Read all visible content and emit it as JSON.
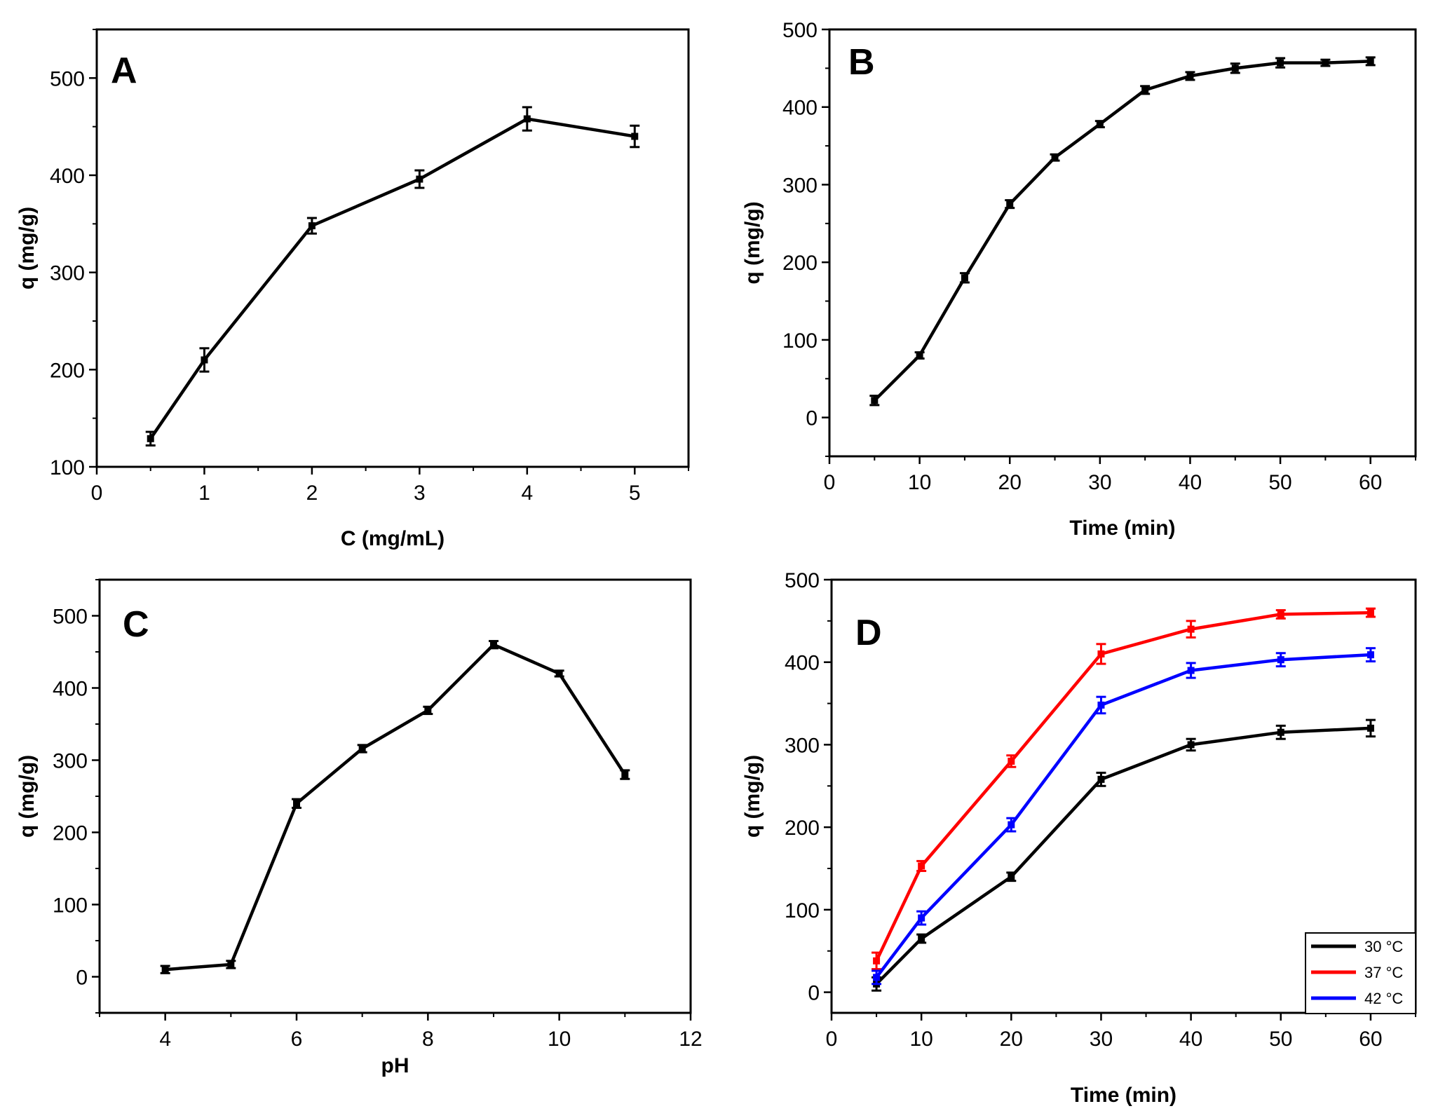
{
  "chart_data": [
    {
      "type": "line",
      "panel": "A",
      "xlabel": "C (mg/mL)",
      "ylabel": "q (mg/g)",
      "xlim": [
        0,
        5.5
      ],
      "ylim": [
        100,
        550
      ],
      "xticks": [
        0,
        1,
        2,
        3,
        4,
        5
      ],
      "yticks": [
        100,
        200,
        300,
        400,
        500
      ],
      "series": [
        {
          "name": "q",
          "color": "#000000",
          "x": [
            0.5,
            1,
            2,
            3,
            4,
            5
          ],
          "y": [
            129,
            210,
            348,
            396,
            458,
            440
          ],
          "err": [
            7,
            12,
            8,
            9,
            12,
            11
          ]
        }
      ]
    },
    {
      "type": "line",
      "panel": "B",
      "xlabel": "Time (min)",
      "ylabel": "q (mg/g)",
      "xlim": [
        0,
        65
      ],
      "ylim": [
        -50,
        500
      ],
      "xticks": [
        0,
        10,
        20,
        30,
        40,
        50,
        60
      ],
      "yticks": [
        0,
        100,
        200,
        300,
        400,
        500
      ],
      "series": [
        {
          "name": "q",
          "color": "#000000",
          "x": [
            5,
            10,
            15,
            20,
            25,
            30,
            35,
            40,
            45,
            50,
            55,
            60
          ],
          "y": [
            22,
            80,
            180,
            275,
            335,
            378,
            422,
            440,
            450,
            457,
            457,
            459
          ],
          "err": [
            6,
            4,
            6,
            5,
            4,
            4,
            5,
            5,
            6,
            6,
            4,
            5
          ]
        }
      ]
    },
    {
      "type": "line",
      "panel": "C",
      "xlabel": "pH",
      "ylabel": "q (mg/g)",
      "xlim": [
        3,
        12
      ],
      "ylim": [
        -50,
        550
      ],
      "xticks": [
        4,
        6,
        8,
        10,
        12
      ],
      "yticks": [
        0,
        100,
        200,
        300,
        400,
        500
      ],
      "series": [
        {
          "name": "q",
          "color": "#000000",
          "x": [
            4,
            5,
            6,
            7,
            8,
            9,
            10,
            11
          ],
          "y": [
            10,
            17,
            240,
            316,
            369,
            460,
            420,
            280
          ],
          "err": [
            5,
            5,
            6,
            5,
            5,
            5,
            4,
            6
          ]
        }
      ]
    },
    {
      "type": "line",
      "panel": "D",
      "xlabel": "Time (min)",
      "ylabel": "q (mg/g)",
      "xlim": [
        0,
        65
      ],
      "ylim": [
        -25,
        500
      ],
      "xticks": [
        0,
        10,
        20,
        30,
        40,
        50,
        60
      ],
      "yticks": [
        0,
        100,
        200,
        300,
        400,
        500
      ],
      "legend_position": "bottom-right",
      "series": [
        {
          "name": "30 °C",
          "color": "#000000",
          "x": [
            5,
            10,
            20,
            30,
            40,
            50,
            60
          ],
          "y": [
            10,
            65,
            140,
            258,
            300,
            315,
            320
          ],
          "err": [
            8,
            5,
            5,
            8,
            7,
            8,
            10
          ]
        },
        {
          "name": "37 °C",
          "color": "#ff0000",
          "x": [
            5,
            10,
            20,
            30,
            40,
            50,
            60
          ],
          "y": [
            38,
            153,
            280,
            410,
            440,
            458,
            460
          ],
          "err": [
            10,
            6,
            7,
            12,
            10,
            5,
            5
          ]
        },
        {
          "name": "42 °C",
          "color": "#0000ff",
          "x": [
            5,
            10,
            20,
            30,
            40,
            50,
            60
          ],
          "y": [
            18,
            90,
            203,
            348,
            390,
            403,
            409
          ],
          "err": [
            8,
            8,
            8,
            10,
            9,
            8,
            8
          ]
        }
      ]
    }
  ]
}
